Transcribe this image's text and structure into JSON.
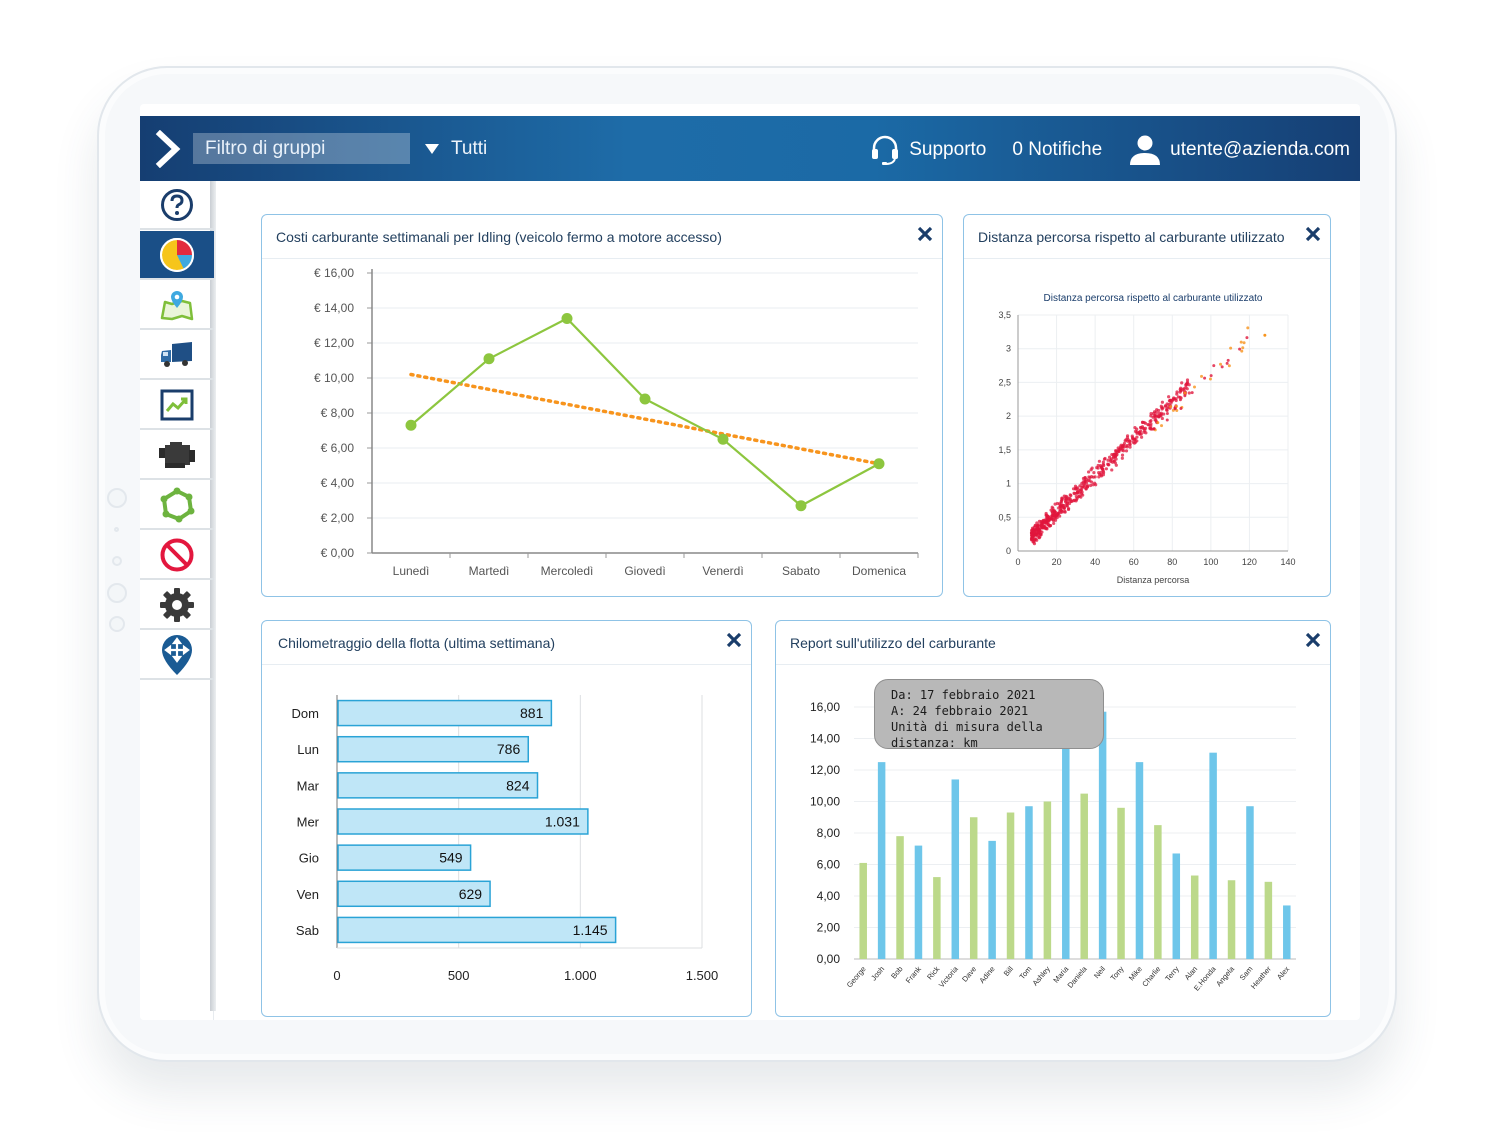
{
  "header": {
    "filter_placeholder": "Filtro di gruppi",
    "group_dropdown": "Tutti",
    "support_label": "Supporto",
    "notifications_label": "0 Notifiche",
    "user_label": "utente@azienda.com"
  },
  "sidebar": {
    "items": [
      {
        "icon": "help-icon"
      },
      {
        "icon": "dashboard-pie-icon",
        "active": true
      },
      {
        "icon": "map-pin-icon"
      },
      {
        "icon": "truck-icon"
      },
      {
        "icon": "trend-chart-icon"
      },
      {
        "icon": "engine-icon"
      },
      {
        "icon": "zone-polygon-icon"
      },
      {
        "icon": "no-entry-icon"
      },
      {
        "icon": "gear-icon"
      },
      {
        "icon": "move-pin-icon"
      }
    ]
  },
  "colors": {
    "accent_blue": "#1a4f87",
    "line_green": "#8dc63f",
    "trend_orange": "#f7941d",
    "bar_light_blue": "#bfe6f7",
    "bar_sky": "#6ec6ea",
    "bar_green": "#bcd98a",
    "scatter_red": "#e0163c"
  },
  "panels": {
    "idling": {
      "title": "Costi carburante settimanali per Idling (veicolo fermo a motore accesso)"
    },
    "scatter": {
      "title": "Distanza percorsa rispetto al carburante utilizzato"
    },
    "mileage": {
      "title": "Chilometraggio della flotta (ultima settimana)"
    },
    "fuel_report": {
      "title": "Report sull'utilizzo del carburante"
    }
  },
  "chart_data": [
    {
      "type": "line",
      "categories": [
        "Lunedì",
        "Martedì",
        "Mercoledì",
        "Giovedì",
        "Venerdì",
        "Sabato",
        "Domenica"
      ],
      "series": [
        {
          "values": [
            7.3,
            11.1,
            13.4,
            8.8,
            6.5,
            2.7,
            5.1
          ]
        }
      ],
      "trend": {
        "start": 10.2,
        "end": 5.1
      },
      "yticks": [
        "€ 0,00",
        "€ 2,00",
        "€ 4,00",
        "€ 6,00",
        "€ 8,00",
        "€ 10,00",
        "€ 12,00",
        "€ 14,00",
        "€ 16,00"
      ],
      "ylim": [
        0,
        16
      ],
      "grid": true
    },
    {
      "type": "scatter",
      "title": "Distanza percorsa rispetto al carburante utilizzato",
      "xlabel": "Distanza percorsa",
      "xticks": [
        "0",
        "20",
        "40",
        "60",
        "80",
        "100",
        "120",
        "140"
      ],
      "yticks": [
        "0",
        "0,5",
        "1",
        "1,5",
        "2",
        "2,5",
        "3",
        "3,5"
      ],
      "xlim": [
        0,
        140
      ],
      "ylim": [
        0,
        3.5
      ],
      "grid": true
    },
    {
      "type": "bar",
      "orientation": "horizontal",
      "categories": [
        "Dom",
        "Lun",
        "Mar",
        "Mer",
        "Gio",
        "Ven",
        "Sab"
      ],
      "values": [
        881,
        786,
        824,
        1031,
        549,
        629,
        1145
      ],
      "labels": [
        "881",
        "786",
        "824",
        "1.031",
        "549",
        "629",
        "1.145"
      ],
      "xticks": [
        "0",
        "500",
        "1.000",
        "1.500"
      ],
      "xlim": [
        0,
        1500
      ]
    },
    {
      "type": "bar",
      "categories": [
        "George",
        "Josh",
        "Bob",
        "Frank",
        "Rick",
        "Victoria",
        "Dave",
        "Adine",
        "Bill",
        "Tom",
        "Ashley",
        "Maria",
        "Daniela",
        "Neil",
        "Tony",
        "Mike",
        "Charlie",
        "Terry",
        "Alan",
        "E.Honda",
        "Angela",
        "Sam",
        "Heather",
        "Alex"
      ],
      "values": [
        6.1,
        12.5,
        7.8,
        7.2,
        5.2,
        11.4,
        9.0,
        7.5,
        9.3,
        9.7,
        10.0,
        14.6,
        10.5,
        15.7,
        9.6,
        12.5,
        8.5,
        6.7,
        5.3,
        13.1,
        5.0,
        9.7,
        4.9,
        3.4
      ],
      "colors": [
        "green",
        "blue",
        "green",
        "blue",
        "green",
        "blue",
        "green",
        "blue",
        "green",
        "blue",
        "green",
        "blue",
        "green",
        "blue",
        "green",
        "blue",
        "green",
        "blue",
        "green",
        "blue",
        "green",
        "blue",
        "green",
        "blue"
      ],
      "yticks": [
        "0,00",
        "2,00",
        "4,00",
        "6,00",
        "8,00",
        "10,00",
        "12,00",
        "14,00",
        "16,00"
      ],
      "ylim": [
        0,
        16
      ],
      "tooltip": {
        "line1": "Da: 17 febbraio 2021",
        "line2": "A: 24 febbraio 2021",
        "line3": "Unità di misura della distanza: km"
      }
    }
  ]
}
